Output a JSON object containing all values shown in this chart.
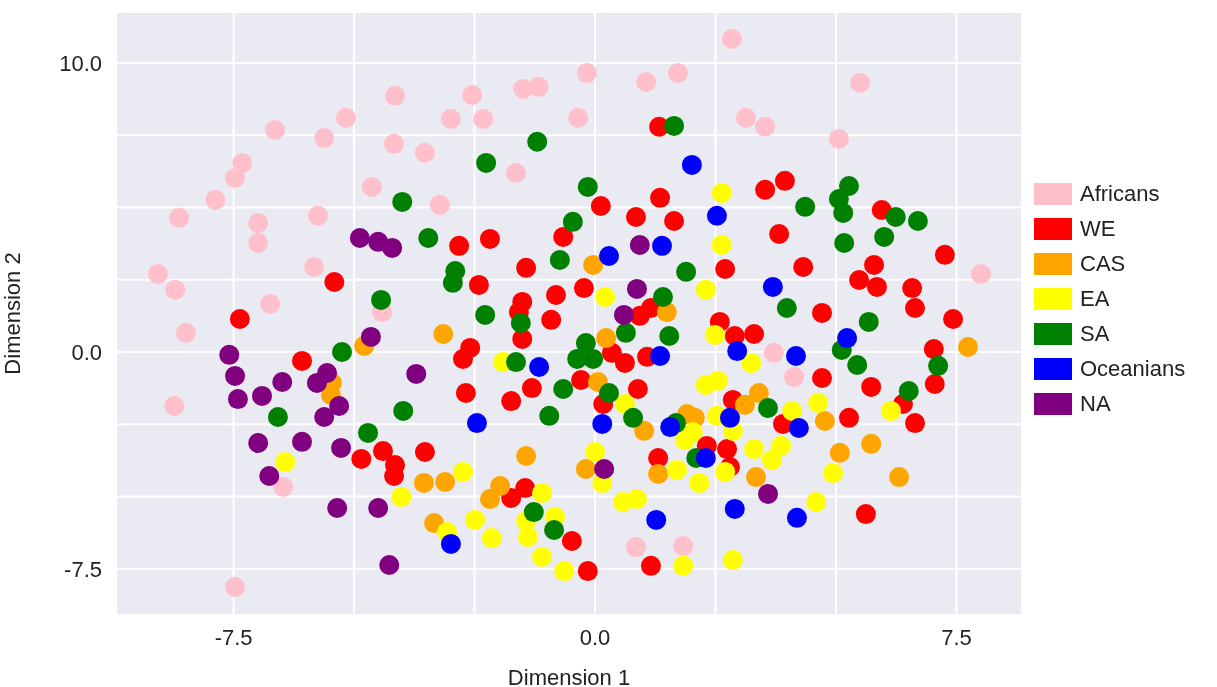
{
  "chart_data": {
    "type": "scatter",
    "xlabel": "Dimension 1",
    "ylabel": "Dimension 2",
    "xlim": [
      -9.94,
      8.86
    ],
    "ylim": [
      -9.1,
      11.76
    ],
    "xticks": [
      -7.5,
      {
        "value": -5,
        "label": null
      },
      {
        "value": -2.5,
        "label": null
      },
      {
        "value": 0,
        "label": "0.0"
      },
      {
        "value": 2.5,
        "label": null
      },
      {
        "value": 5,
        "label": null
      },
      7.5
    ],
    "yticks": [
      -7.5,
      {
        "value": -5,
        "label": null
      },
      {
        "value": -2.5,
        "label": null
      },
      {
        "value": 0,
        "label": "0.0"
      },
      {
        "value": 2.5,
        "label": null
      },
      {
        "value": 5,
        "label": null
      },
      {
        "value": 7.5,
        "label": null
      },
      {
        "value": 10,
        "label": "10.0"
      }
    ],
    "grid": true,
    "legend": "right",
    "marker": "circle",
    "series": [
      {
        "name": "Africans",
        "color": "#ffc0cb",
        "x": [
          2.84,
          5.5,
          3.13,
          3.53,
          5.06,
          8.01,
          -2.55,
          -2.99,
          -2.32,
          -1.49,
          -1.17,
          -0.17,
          -0.35,
          1.06,
          1.72,
          -3.53,
          -1.64,
          -3.22,
          -4.15,
          -5.17,
          -6.64,
          -5.62,
          -4.17,
          -7.32,
          -7.47,
          -7.88,
          -4.63,
          -8.63,
          -6.99,
          -6.99,
          -5.75,
          -9.07,
          -8.71,
          -5.83,
          -6.74,
          -4.42,
          -8.49,
          -8.73,
          -6.47,
          -7.47,
          0.85,
          1.83,
          3.71,
          4.13
        ],
        "values": [
          10.83,
          9.31,
          8.1,
          7.79,
          7.37,
          2.7,
          8.89,
          8.06,
          8.06,
          9.1,
          9.17,
          9.65,
          8.1,
          9.34,
          9.65,
          6.89,
          6.19,
          5.09,
          8.86,
          8.1,
          7.68,
          7.4,
          7.2,
          6.54,
          6.02,
          5.26,
          5.71,
          4.64,
          4.46,
          3.77,
          4.71,
          2.7,
          2.15,
          2.94,
          1.66,
          1.38,
          0.66,
          -1.87,
          -4.67,
          -8.13,
          -6.75,
          -6.71,
          -0.03,
          -0.87
        ]
      },
      {
        "name": "WE",
        "color": "#ff0000",
        "x": [
          1.33,
          1.35,
          0.12,
          0.85,
          1.64,
          -0.66,
          -2.82,
          -2.18,
          -1.43,
          -2.41,
          -0.81,
          -0.23,
          -1.51,
          -1.58,
          -0.91,
          0.93,
          1.16,
          2.7,
          2.59,
          3.53,
          3.94,
          5.95,
          3.82,
          4.32,
          5.79,
          5.48,
          5.85,
          6.58,
          6.64,
          7.26,
          4.71,
          7.43,
          -5.41,
          -7.37,
          -6.08,
          -4.85,
          -4.4,
          -4.15,
          -4.17,
          -3.53,
          -1.51,
          -2.59,
          -2.74,
          0.35,
          0.62,
          1.08,
          -2.68,
          -1.74,
          -1.31,
          -0.29,
          0.89,
          0.17,
          1.31,
          -1.45,
          -1.74,
          -0.48,
          -0.15,
          1.16,
          2.32,
          2.74,
          2.8,
          2.86,
          2.9,
          3.3,
          7.03,
          4.71,
          5.73,
          7.05,
          6.39,
          6.64,
          5.27,
          3.9,
          5.62
        ],
        "values": [
          7.79,
          5.33,
          5.05,
          4.67,
          4.53,
          3.98,
          3.67,
          3.91,
          2.91,
          2.32,
          1.97,
          2.21,
          1.73,
          1.38,
          1.11,
          1.25,
          1.52,
          2.87,
          1.04,
          5.61,
          5.92,
          4.91,
          4.08,
          2.94,
          3.01,
          2.49,
          2.25,
          2.21,
          1.52,
          3.36,
          1.35,
          1.14,
          2.42,
          1.14,
          -0.31,
          -3.7,
          -3.43,
          -3.91,
          -4.29,
          -3.46,
          0.45,
          0.14,
          -0.24,
          -0.03,
          -0.38,
          -0.17,
          -1.42,
          -1.7,
          -1.25,
          -0.97,
          -1.28,
          -1.8,
          -3.67,
          -4.71,
          -5.05,
          -6.54,
          -7.58,
          -7.4,
          -3.25,
          -3.36,
          -3.98,
          -1.66,
          0.55,
          0.62,
          0.1,
          -0.9,
          -1.21,
          -1.11,
          -1.8,
          -2.46,
          -2.28,
          -2.49,
          -5.61
        ]
      },
      {
        "name": "CAS",
        "color": "#ffa500",
        "x": [
          -0.04,
          1.49,
          -4.79,
          -5.46,
          -5.48,
          -3.55,
          -3.34,
          -3.15,
          0.23,
          0.06,
          1.02,
          -1.43,
          -0.19,
          -3.11,
          -1.97,
          -2.18,
          1.31,
          1.91,
          2.07,
          3.4,
          3.11,
          4.77,
          5.08,
          5.73,
          6.31,
          3.34,
          7.74
        ],
        "values": [
          3.01,
          1.38,
          0.21,
          -1.07,
          -1.49,
          -4.53,
          -5.92,
          0.62,
          0.48,
          -1.04,
          -2.73,
          -3.6,
          -4.05,
          -4.5,
          -4.64,
          -5.09,
          -4.22,
          -2.15,
          -2.28,
          -1.42,
          -1.83,
          -2.39,
          -3.49,
          -3.18,
          -4.33,
          -4.33,
          0.17
        ]
      },
      {
        "name": "EA",
        "color": "#ffff00",
        "x": [
          2.63,
          2.63,
          0.21,
          2.3,
          -6.43,
          -4.02,
          -1.91,
          2.49,
          2.3,
          2.55,
          2.53,
          1.87,
          2.03,
          0.62,
          0.0,
          0.15,
          1.7,
          2.16,
          -2.74,
          -1.1,
          0.58,
          0.87,
          -2.49,
          -2.14,
          -3.07,
          -1.43,
          -0.83,
          -1.39,
          -1.1,
          -0.64,
          1.83,
          2.86,
          3.24,
          4.09,
          4.63,
          2.86,
          3.3,
          3.86,
          3.67,
          2.7,
          4.94,
          4.59,
          6.14
        ],
        "values": [
          5.5,
          3.7,
          1.9,
          2.15,
          -3.81,
          -5.02,
          -0.35,
          0.59,
          -1.14,
          -1.0,
          -2.21,
          -3.04,
          -2.77,
          -1.8,
          -3.46,
          -4.53,
          -4.08,
          -4.53,
          -4.15,
          -4.88,
          -5.19,
          -5.09,
          -5.81,
          -6.44,
          -6.23,
          -5.85,
          -5.71,
          -6.4,
          -7.09,
          -7.58,
          -7.4,
          -7.2,
          -0.38,
          -2.04,
          -1.76,
          -2.73,
          -3.36,
          -3.25,
          -3.74,
          -4.15,
          -4.19,
          -5.19,
          -2.04
        ]
      },
      {
        "name": "SA",
        "color": "#008000",
        "x": [
          -4.0,
          -3.46,
          -4.44,
          1.64,
          -1.2,
          -2.26,
          -0.15,
          -0.46,
          -0.73,
          -2.9,
          -2.95,
          1.89,
          1.41,
          -2.28,
          5.27,
          5.06,
          4.36,
          5.15,
          6.24,
          6.7,
          6.0,
          5.17,
          3.98,
          5.68,
          -5.25,
          -6.58,
          -3.98,
          -4.71,
          -1.54,
          -1.64,
          -0.19,
          -0.37,
          -0.04,
          0.64,
          1.54,
          -0.66,
          0.29,
          -0.95,
          0.79,
          1.68,
          2.1,
          -1.27,
          -0.85,
          5.12,
          5.44,
          7.12,
          6.51,
          3.59
        ],
        "values": [
          5.19,
          3.94,
          1.8,
          7.82,
          7.27,
          6.54,
          5.71,
          4.5,
          3.18,
          2.8,
          2.39,
          2.77,
          1.9,
          1.28,
          5.74,
          5.29,
          5.02,
          4.81,
          4.67,
          4.53,
          3.98,
          3.77,
          1.52,
          1.04,
          0.0,
          -2.25,
          -2.04,
          -2.8,
          1.0,
          -0.35,
          0.31,
          -0.24,
          -0.24,
          0.66,
          0.55,
          -1.28,
          -1.42,
          -2.21,
          -2.28,
          -2.46,
          -3.67,
          -5.54,
          -6.16,
          0.07,
          -0.45,
          -0.48,
          -1.35,
          -1.94
        ]
      },
      {
        "name": "Oceanians",
        "color": "#0000ff",
        "x": [
          2.01,
          2.53,
          1.39,
          0.29,
          3.69,
          5.23,
          2.95,
          4.17,
          -1.16,
          1.35,
          -2.45,
          0.15,
          1.56,
          2.3,
          2.8,
          4.23,
          1.27,
          -2.99,
          2.9,
          4.19
        ],
        "values": [
          6.47,
          4.71,
          3.67,
          3.32,
          2.25,
          0.48,
          0.03,
          -0.14,
          -0.52,
          -0.14,
          -2.46,
          -2.49,
          -2.6,
          -3.67,
          -2.28,
          -2.63,
          -5.81,
          -6.64,
          -5.43,
          -5.74
        ]
      },
      {
        "name": "NA",
        "color": "#800080",
        "x": [
          -4.88,
          -4.5,
          -4.21,
          0.93,
          0.87,
          0.6,
          -4.65,
          -7.59,
          -7.47,
          -7.41,
          -6.91,
          -6.49,
          -5.77,
          -5.56,
          -5.31,
          -5.62,
          -3.71,
          -6.99,
          -6.08,
          -5.27,
          -6.76,
          -5.35,
          -4.5,
          -4.27,
          0.19,
          3.59
        ],
        "values": [
          3.94,
          3.81,
          3.6,
          3.7,
          2.18,
          1.28,
          0.52,
          -0.1,
          -0.83,
          -1.63,
          -1.52,
          -1.04,
          -1.07,
          -0.73,
          -1.87,
          -2.25,
          -0.76,
          -3.15,
          -3.11,
          -3.32,
          -4.29,
          -5.4,
          -5.4,
          -7.37,
          -4.05,
          -4.91
        ]
      }
    ]
  }
}
